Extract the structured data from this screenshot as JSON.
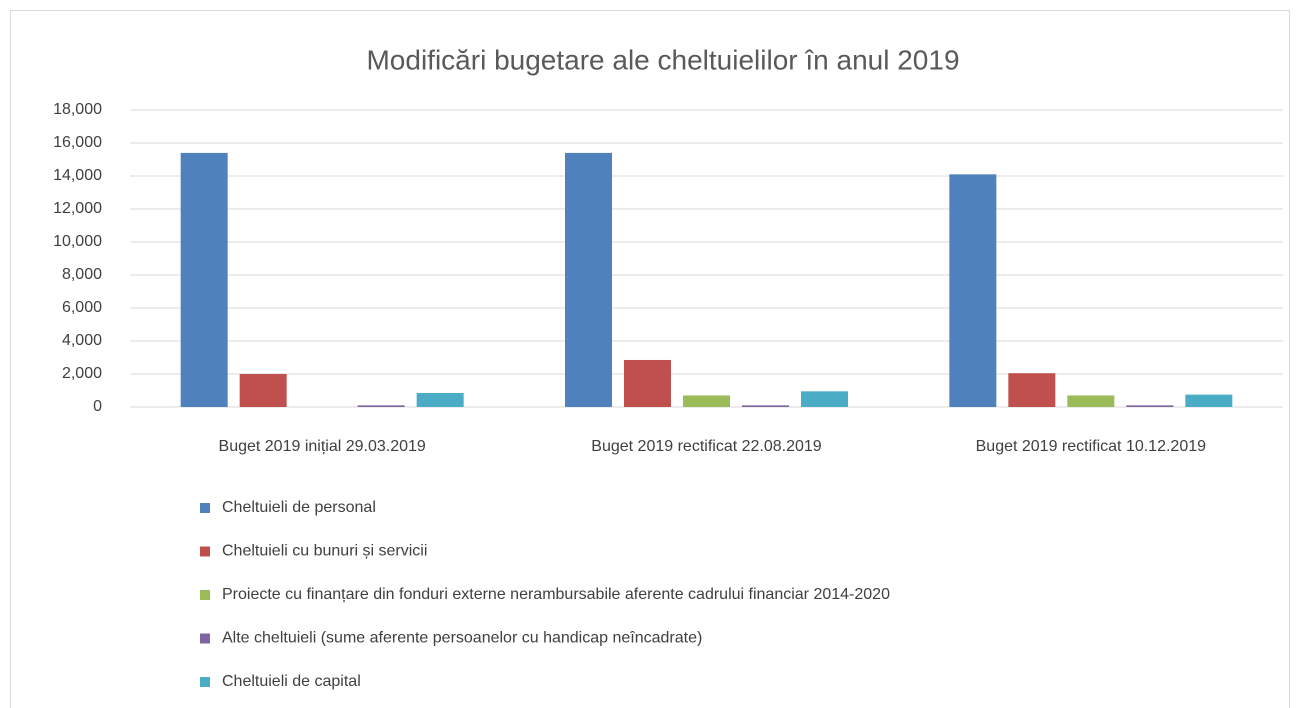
{
  "chart_data": {
    "type": "bar",
    "title": "Modificări bugetare ale cheltuielilor în anul 2019",
    "categories": [
      "Buget 2019 inițial 29.03.2019",
      "Buget 2019 rectificat 22.08.2019",
      "Buget 2019 rectificat 10.12.2019"
    ],
    "series": [
      {
        "name": "Cheltuieli de personal",
        "color": "#4f81bd",
        "values": [
          15400,
          15400,
          14100
        ]
      },
      {
        "name": "Cheltuieli cu bunuri și servicii",
        "color": "#c0504d",
        "values": [
          2000,
          2850,
          2050
        ]
      },
      {
        "name": "Proiecte cu finanțare din fonduri externe nerambursabile aferente cadrului financiar 2014-2020",
        "color": "#9bbb59",
        "values": [
          0,
          700,
          700
        ]
      },
      {
        "name": "Alte cheltuieli (sume aferente persoanelor cu handicap neîncadrate)",
        "color": "#8064a2",
        "values": [
          100,
          100,
          100
        ]
      },
      {
        "name": "Cheltuieli de capital",
        "color": "#4bacc6",
        "values": [
          850,
          950,
          750
        ]
      }
    ],
    "ylim": [
      0,
      18000
    ],
    "yticks": [
      0,
      {
        "value": 2000,
        "label": "2,000"
      },
      {
        "value": 4000,
        "label": "4,000"
      },
      {
        "value": 6000,
        "label": "6,000"
      },
      {
        "value": 8000,
        "label": "8,000"
      },
      {
        "value": 10000,
        "label": "10,000"
      },
      {
        "value": 12000,
        "label": "12,000"
      },
      {
        "value": 14000,
        "label": "14,000"
      },
      {
        "value": 16000,
        "label": "16,000"
      },
      {
        "value": 18000,
        "label": "18,000"
      }
    ],
    "grid": true,
    "legend": "bottom"
  }
}
